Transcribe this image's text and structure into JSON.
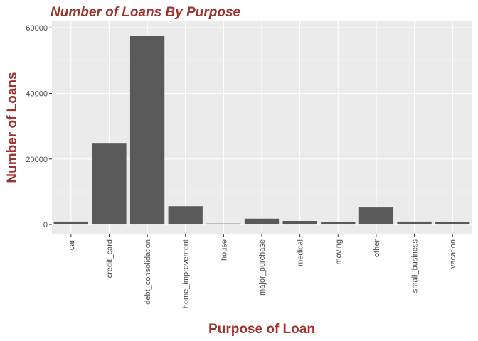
{
  "chart_data": {
    "type": "bar",
    "title": "Number of Loans By Purpose",
    "xlabel": "Purpose of Loan",
    "ylabel": "Number of Loans",
    "categories": [
      "car",
      "credit_card",
      "debt_consolidation",
      "home_improvement",
      "house",
      "major_purchase",
      "medical",
      "moving",
      "other",
      "small_business",
      "vacation"
    ],
    "values": [
      900,
      24900,
      57500,
      5600,
      300,
      1800,
      1100,
      700,
      5200,
      900,
      700
    ],
    "ylim": [
      -2800,
      62000
    ],
    "yticks": [
      0,
      20000,
      40000,
      60000
    ],
    "ytick_labels": [
      "0",
      "20000",
      "40000",
      "60000"
    ],
    "grid": true,
    "colors": {
      "panel": "#ebebeb",
      "grid_major": "#ffffff",
      "bar": "#595959",
      "title": "#a0322d"
    }
  }
}
